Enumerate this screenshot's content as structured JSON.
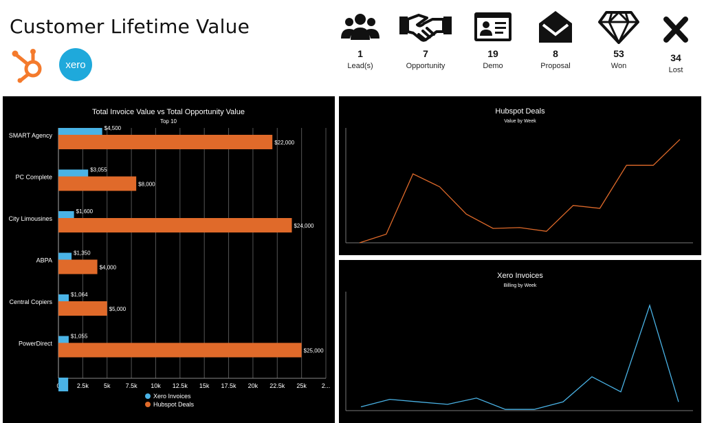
{
  "header": {
    "title": "Customer Lifetime Value",
    "logos": [
      {
        "name": "hubspot",
        "color": "#f47a2c"
      },
      {
        "name": "xero",
        "color": "#1fa9db",
        "text": "xero"
      }
    ]
  },
  "stats": [
    {
      "icon": "users-icon",
      "count": "1",
      "label": "Lead(s)"
    },
    {
      "icon": "handshake-icon",
      "count": "7",
      "label": "Opportunity"
    },
    {
      "icon": "id-card-icon",
      "count": "19",
      "label": "Demo"
    },
    {
      "icon": "envelope-open-icon",
      "count": "8",
      "label": "Proposal"
    },
    {
      "icon": "diamond-icon",
      "count": "53",
      "label": "Won"
    },
    {
      "icon": "close-icon",
      "count": "34",
      "label": "Lost"
    }
  ],
  "colors": {
    "xero": "#4ab3e6",
    "hubspot": "#e06a2a",
    "panel_bg": "#000000",
    "grid": "#555555"
  },
  "chart_data": [
    {
      "type": "bar",
      "title": "Total Invoice Value vs Total Opportunity Value",
      "subtitle": "Top 10",
      "orientation": "horizontal",
      "categories": [
        "SMART Agency",
        "PC Complete",
        "City Limousines",
        "ABPA",
        "Central Copiers",
        "PowerDirect",
        ""
      ],
      "series": [
        {
          "name": "Xero Invoices",
          "values": [
            4500,
            3055,
            1600,
            1350,
            1064,
            1055,
            1000
          ],
          "labels": [
            "$4,500",
            "$3,055",
            "$1,600",
            "$1,350",
            "$1,064",
            "$1,055",
            ""
          ]
        },
        {
          "name": "Hubspot Deals",
          "values": [
            22000,
            8000,
            24000,
            4000,
            5000,
            25000,
            null
          ],
          "labels": [
            "$22,000",
            "$8,000",
            "$24,000",
            "$4,000",
            "$5,000",
            "$25,000",
            ""
          ]
        }
      ],
      "xticks": [
        "0",
        "2.5k",
        "5k",
        "7.5k",
        "10k",
        "12.5k",
        "15k",
        "17.5k",
        "20k",
        "22.5k",
        "25k",
        "2..."
      ],
      "xlim": [
        0,
        27500
      ],
      "grid": true,
      "legend": "bottom"
    },
    {
      "type": "line",
      "title": "Hubspot Deals",
      "subtitle": "Value by Week",
      "values": [
        0,
        3,
        24,
        19.5,
        10,
        5,
        5.3,
        4,
        13,
        12,
        27,
        27,
        36
      ],
      "ylim": [
        0,
        40
      ]
    },
    {
      "type": "line",
      "title": "Xero Invoices",
      "subtitle": "Billing by Week",
      "values": [
        3,
        9,
        7,
        5,
        10,
        1,
        1,
        7,
        27,
        15,
        84,
        7
      ],
      "ylim": [
        0,
        95
      ]
    }
  ]
}
